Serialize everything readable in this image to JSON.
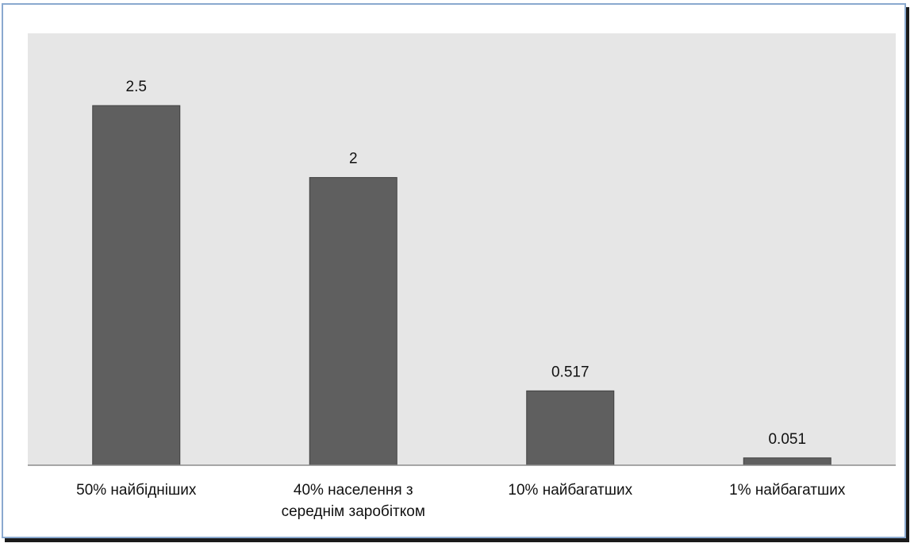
{
  "chart_data": {
    "type": "bar",
    "title": "",
    "xlabel": "",
    "ylabel": "",
    "categories": [
      [
        "50% найбідніших"
      ],
      [
        "40% населення з",
        "середнім заробітком"
      ],
      [
        "10% найбагатших"
      ],
      [
        "1% найбагатших"
      ]
    ],
    "values": [
      2.5,
      2,
      0.517,
      0.051
    ],
    "value_labels": [
      "2.5",
      "2",
      "0.517",
      "0.051"
    ],
    "ylim": [
      0,
      2.5
    ],
    "grid": false,
    "legend": "none",
    "colors": {
      "bar": "#5f5f5f",
      "bar_edge": "#404040",
      "plot_bg": "#e6e6e6",
      "frame": "#8aa9cf",
      "axis": "#8c8c8c",
      "text": "#111111"
    }
  }
}
